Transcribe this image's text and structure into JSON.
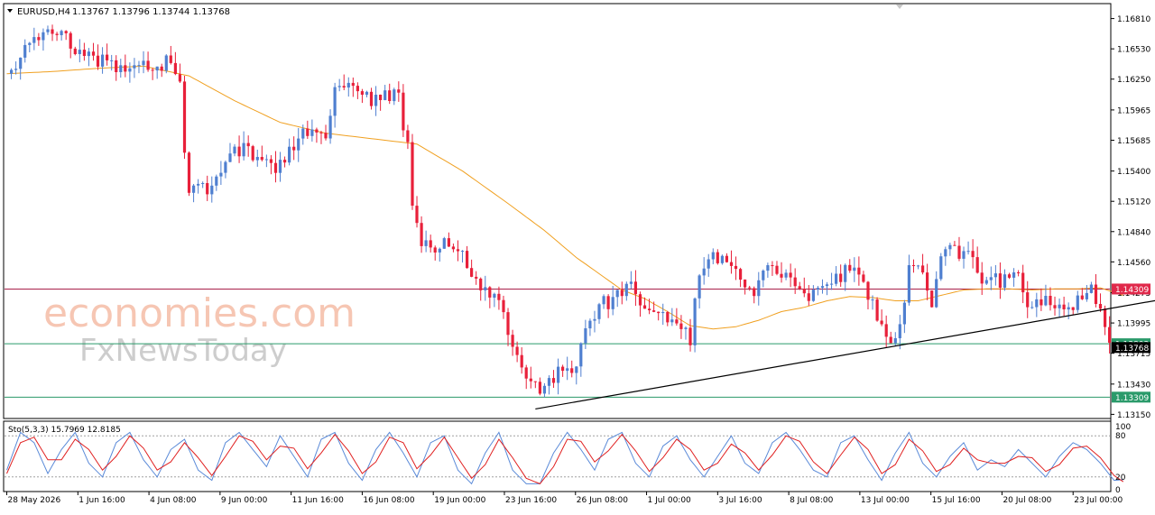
{
  "header": {
    "symbol": "EURUSD,H4",
    "ohlc": "1.13767 1.13796 1.13744 1.13768"
  },
  "watermark": {
    "line1": "economies.com",
    "line2": "FxNewsToday"
  },
  "colors": {
    "bull": "#4f7fd0",
    "bear": "#e8203a",
    "ma": "#f0a020",
    "resistance": "#a8204a",
    "support": "#2a9a6a",
    "trendline": "#000000",
    "stoch_main": "#5a8ad8",
    "stoch_signal": "#e02020"
  },
  "indicator": {
    "label": "Sto(5,3,3) 15.7969 12.8185",
    "levels": [
      "100",
      "80",
      "20",
      "0"
    ]
  },
  "chart_data": {
    "type": "candlestick",
    "symbol": "EURUSD",
    "timeframe": "H4",
    "y_ticks": [
      "1.16810",
      "1.16530",
      "1.16250",
      "1.15965",
      "1.15685",
      "1.15400",
      "1.15120",
      "1.14840",
      "1.14560",
      "1.14275",
      "1.13995",
      "1.13715",
      "1.13430",
      "1.13150"
    ],
    "ylim": [
      1.1312,
      1.1694
    ],
    "x_labels": [
      "28 May 2026",
      "1 Jun 16:00",
      "4 Jun 08:00",
      "9 Jun 00:00",
      "11 Jun 16:00",
      "16 Jun 08:00",
      "19 Jun 00:00",
      "23 Jun 16:00",
      "26 Jun 08:00",
      "1 Jul 00:00",
      "3 Jul 16:00",
      "8 Jul 08:00",
      "13 Jul 00:00",
      "15 Jul 16:00",
      "20 Jul 08:00",
      "23 Jul 00:00"
    ],
    "levels": [
      {
        "name": "resistance",
        "value": 1.14309,
        "label": "1.14309"
      },
      {
        "name": "support-1",
        "value": 1.13803,
        "label": "1.13803"
      },
      {
        "name": "support-2",
        "value": 1.13309,
        "label": "1.13309"
      }
    ],
    "current_price": {
      "value": 1.13768,
      "label": "1.13768"
    },
    "trendline": {
      "from": {
        "bar": 116,
        "price": 1.132
      },
      "to": {
        "bar": 283,
        "price": 1.1443
      }
    },
    "price_path": [
      [
        0,
        1.163
      ],
      [
        4,
        1.1655
      ],
      [
        10,
        1.167
      ],
      [
        16,
        1.165
      ],
      [
        22,
        1.164
      ],
      [
        28,
        1.163
      ],
      [
        32,
        1.164
      ],
      [
        36,
        1.164
      ],
      [
        38,
        1.1625
      ],
      [
        39,
        1.156
      ],
      [
        40,
        1.1525
      ],
      [
        44,
        1.152
      ],
      [
        48,
        1.1545
      ],
      [
        52,
        1.1565
      ],
      [
        56,
        1.155
      ],
      [
        60,
        1.1545
      ],
      [
        63,
        1.1565
      ],
      [
        66,
        1.158
      ],
      [
        70,
        1.1575
      ],
      [
        72,
        1.161
      ],
      [
        76,
        1.1615
      ],
      [
        80,
        1.1605
      ],
      [
        84,
        1.161
      ],
      [
        86,
        1.1605
      ],
      [
        88,
        1.156
      ],
      [
        89,
        1.15
      ],
      [
        91,
        1.147
      ],
      [
        94,
        1.1465
      ],
      [
        98,
        1.1475
      ],
      [
        100,
        1.146
      ],
      [
        103,
        1.144
      ],
      [
        106,
        1.143
      ],
      [
        108,
        1.142
      ],
      [
        110,
        1.139
      ],
      [
        113,
        1.1365
      ],
      [
        115,
        1.1345
      ],
      [
        117,
        1.133
      ],
      [
        120,
        1.135
      ],
      [
        123,
        1.136
      ],
      [
        125,
        1.1355
      ],
      [
        127,
        1.14
      ],
      [
        129,
        1.141
      ],
      [
        132,
        1.142
      ],
      [
        136,
        1.1435
      ],
      [
        140,
        1.1415
      ],
      [
        144,
        1.1405
      ],
      [
        148,
        1.1395
      ],
      [
        150,
        1.1385
      ],
      [
        152,
        1.145
      ],
      [
        155,
        1.146
      ],
      [
        160,
        1.1445
      ],
      [
        164,
        1.143
      ],
      [
        168,
        1.145
      ],
      [
        172,
        1.144
      ],
      [
        175,
        1.142
      ],
      [
        178,
        1.1435
      ],
      [
        182,
        1.144
      ],
      [
        186,
        1.1455
      ],
      [
        188,
        1.143
      ],
      [
        190,
        1.1415
      ],
      [
        193,
        1.139
      ],
      [
        195,
        1.1385
      ],
      [
        198,
        1.1445
      ],
      [
        201,
        1.145
      ],
      [
        203,
        1.142
      ],
      [
        206,
        1.1475
      ],
      [
        208,
        1.147
      ],
      [
        211,
        1.146
      ],
      [
        213,
        1.1445
      ],
      [
        216,
        1.144
      ],
      [
        219,
        1.144
      ],
      [
        222,
        1.144
      ],
      [
        224,
        1.142
      ],
      [
        227,
        1.142
      ],
      [
        230,
        1.141
      ],
      [
        233,
        1.1415
      ],
      [
        236,
        1.142
      ],
      [
        238,
        1.143
      ],
      [
        240,
        1.141
      ],
      [
        242,
        1.1375
      ],
      [
        243,
        1.137
      ]
    ],
    "moving_average": [
      [
        0,
        1.163
      ],
      [
        10,
        1.1632
      ],
      [
        20,
        1.1635
      ],
      [
        30,
        1.1637
      ],
      [
        40,
        1.1628
      ],
      [
        50,
        1.1605
      ],
      [
        60,
        1.1585
      ],
      [
        70,
        1.1575
      ],
      [
        80,
        1.157
      ],
      [
        90,
        1.1565
      ],
      [
        100,
        1.154
      ],
      [
        110,
        1.151
      ],
      [
        118,
        1.1485
      ],
      [
        125,
        1.146
      ],
      [
        130,
        1.1445
      ],
      [
        135,
        1.143
      ],
      [
        140,
        1.1422
      ],
      [
        145,
        1.141
      ],
      [
        150,
        1.1397
      ],
      [
        155,
        1.1394
      ],
      [
        160,
        1.1396
      ],
      [
        165,
        1.1402
      ],
      [
        170,
        1.141
      ],
      [
        175,
        1.1414
      ],
      [
        180,
        1.142
      ],
      [
        185,
        1.1424
      ],
      [
        190,
        1.1423
      ],
      [
        195,
        1.142
      ],
      [
        200,
        1.142
      ],
      [
        205,
        1.1425
      ],
      [
        210,
        1.143
      ],
      [
        215,
        1.1431
      ],
      [
        220,
        1.1431
      ],
      [
        225,
        1.143
      ],
      [
        230,
        1.1431
      ],
      [
        235,
        1.1431
      ],
      [
        240,
        1.1432
      ],
      [
        245,
        1.1425
      ]
    ],
    "stochastic": {
      "main": [
        [
          0,
          30
        ],
        [
          3,
          85
        ],
        [
          6,
          70
        ],
        [
          9,
          25
        ],
        [
          12,
          60
        ],
        [
          15,
          85
        ],
        [
          18,
          40
        ],
        [
          21,
          20
        ],
        [
          24,
          70
        ],
        [
          27,
          85
        ],
        [
          30,
          45
        ],
        [
          33,
          20
        ],
        [
          36,
          60
        ],
        [
          39,
          75
        ],
        [
          42,
          30
        ],
        [
          45,
          15
        ],
        [
          48,
          70
        ],
        [
          51,
          85
        ],
        [
          54,
          60
        ],
        [
          57,
          35
        ],
        [
          60,
          80
        ],
        [
          63,
          50
        ],
        [
          66,
          20
        ],
        [
          69,
          75
        ],
        [
          72,
          85
        ],
        [
          75,
          40
        ],
        [
          78,
          15
        ],
        [
          81,
          60
        ],
        [
          84,
          85
        ],
        [
          87,
          55
        ],
        [
          90,
          20
        ],
        [
          93,
          70
        ],
        [
          96,
          80
        ],
        [
          99,
          30
        ],
        [
          102,
          10
        ],
        [
          105,
          55
        ],
        [
          108,
          85
        ],
        [
          111,
          30
        ],
        [
          114,
          10
        ],
        [
          117,
          10
        ],
        [
          120,
          55
        ],
        [
          123,
          85
        ],
        [
          126,
          60
        ],
        [
          129,
          30
        ],
        [
          132,
          75
        ],
        [
          135,
          85
        ],
        [
          138,
          40
        ],
        [
          141,
          20
        ],
        [
          144,
          65
        ],
        [
          147,
          80
        ],
        [
          150,
          45
        ],
        [
          153,
          20
        ],
        [
          156,
          50
        ],
        [
          159,
          80
        ],
        [
          162,
          40
        ],
        [
          165,
          25
        ],
        [
          168,
          70
        ],
        [
          171,
          85
        ],
        [
          174,
          60
        ],
        [
          177,
          30
        ],
        [
          180,
          20
        ],
        [
          183,
          70
        ],
        [
          186,
          80
        ],
        [
          189,
          45
        ],
        [
          192,
          15
        ],
        [
          195,
          55
        ],
        [
          198,
          85
        ],
        [
          201,
          40
        ],
        [
          204,
          20
        ],
        [
          207,
          50
        ],
        [
          210,
          70
        ],
        [
          213,
          30
        ],
        [
          216,
          45
        ],
        [
          219,
          35
        ],
        [
          222,
          60
        ],
        [
          225,
          40
        ],
        [
          228,
          20
        ],
        [
          231,
          50
        ],
        [
          234,
          70
        ],
        [
          237,
          60
        ],
        [
          240,
          40
        ],
        [
          243,
          15
        ],
        [
          245,
          16
        ]
      ],
      "signal": [
        [
          0,
          25
        ],
        [
          3,
          70
        ],
        [
          6,
          78
        ],
        [
          9,
          45
        ],
        [
          12,
          45
        ],
        [
          15,
          75
        ],
        [
          18,
          60
        ],
        [
          21,
          30
        ],
        [
          24,
          50
        ],
        [
          27,
          80
        ],
        [
          30,
          62
        ],
        [
          33,
          30
        ],
        [
          36,
          42
        ],
        [
          39,
          70
        ],
        [
          42,
          48
        ],
        [
          45,
          22
        ],
        [
          48,
          50
        ],
        [
          51,
          80
        ],
        [
          54,
          72
        ],
        [
          57,
          45
        ],
        [
          60,
          65
        ],
        [
          63,
          62
        ],
        [
          66,
          32
        ],
        [
          69,
          55
        ],
        [
          72,
          82
        ],
        [
          75,
          58
        ],
        [
          78,
          25
        ],
        [
          81,
          42
        ],
        [
          84,
          78
        ],
        [
          87,
          70
        ],
        [
          90,
          32
        ],
        [
          93,
          52
        ],
        [
          96,
          78
        ],
        [
          99,
          48
        ],
        [
          102,
          18
        ],
        [
          105,
          38
        ],
        [
          108,
          75
        ],
        [
          111,
          48
        ],
        [
          114,
          18
        ],
        [
          117,
          10
        ],
        [
          120,
          35
        ],
        [
          123,
          75
        ],
        [
          126,
          72
        ],
        [
          129,
          42
        ],
        [
          132,
          58
        ],
        [
          135,
          82
        ],
        [
          138,
          58
        ],
        [
          141,
          28
        ],
        [
          144,
          48
        ],
        [
          147,
          75
        ],
        [
          150,
          60
        ],
        [
          153,
          30
        ],
        [
          156,
          40
        ],
        [
          159,
          68
        ],
        [
          162,
          55
        ],
        [
          165,
          30
        ],
        [
          168,
          52
        ],
        [
          171,
          80
        ],
        [
          174,
          72
        ],
        [
          177,
          42
        ],
        [
          180,
          25
        ],
        [
          183,
          52
        ],
        [
          186,
          78
        ],
        [
          189,
          60
        ],
        [
          192,
          25
        ],
        [
          195,
          38
        ],
        [
          198,
          75
        ],
        [
          201,
          58
        ],
        [
          204,
          28
        ],
        [
          207,
          38
        ],
        [
          210,
          62
        ],
        [
          213,
          45
        ],
        [
          216,
          40
        ],
        [
          219,
          40
        ],
        [
          222,
          50
        ],
        [
          225,
          48
        ],
        [
          228,
          28
        ],
        [
          231,
          38
        ],
        [
          234,
          62
        ],
        [
          237,
          65
        ],
        [
          240,
          48
        ],
        [
          243,
          22
        ],
        [
          245,
          13
        ]
      ]
    }
  }
}
